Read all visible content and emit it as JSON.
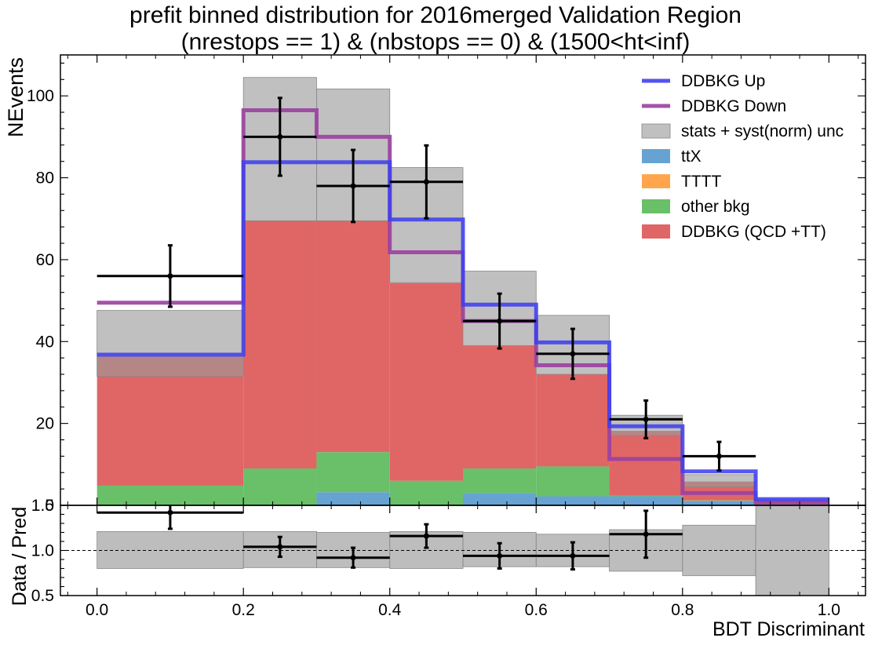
{
  "chart_data": {
    "type": "histogram",
    "title_line1": "prefit binned distribution for 2016merged Validation Region",
    "title_line2": "(nrestops == 1) & (nbstops == 0) & (1500<ht<inf)",
    "xlabel": "BDT Discriminant",
    "ylabel_main": "NEvents",
    "ylabel_ratio": "Data / Pred",
    "xlim": [
      -0.05,
      1.05
    ],
    "ylim_main": [
      0,
      110
    ],
    "ylim_ratio": [
      0.5,
      1.5
    ],
    "xticks": [
      "0.0",
      "0.2",
      "0.4",
      "0.6",
      "0.8",
      "1.0"
    ],
    "yticks_main": [
      "20",
      "40",
      "60",
      "80",
      "100"
    ],
    "yticks_ratio": [
      "0.5",
      "1.0",
      "1.5"
    ],
    "bins": [
      0.0,
      0.2,
      0.3,
      0.4,
      0.5,
      0.6,
      0.7,
      0.8,
      0.9,
      1.0
    ],
    "colors": {
      "ddbkg": "#e06666",
      "other_bkg": "#6abf69",
      "tttt": "#ffa64d",
      "ttx": "#66a3d2",
      "unc": "#999999",
      "up": "#4040ee",
      "down": "#9a40a0",
      "data": "#000000"
    },
    "stack": [
      {
        "name": "ttX",
        "key": "ttx",
        "values": [
          0.0,
          0.0,
          3.2,
          0.0,
          3.0,
          2.2,
          2.2,
          1.0,
          0.2
        ]
      },
      {
        "name": "TTTT",
        "key": "tttt",
        "values": [
          0.0,
          0.0,
          0.0,
          0.0,
          0.0,
          0.0,
          0.0,
          0.0,
          0.0
        ]
      },
      {
        "name": "other bkg",
        "key": "other_bkg",
        "values": [
          4.8,
          9.0,
          9.8,
          6.0,
          6.0,
          7.3,
          0.2,
          0.2,
          0.1
        ]
      },
      {
        "name": "DDBKG (QCD +TT)",
        "key": "ddbkg",
        "values": [
          31.6,
          60.5,
          56.5,
          48.3,
          30.0,
          22.5,
          15.8,
          4.6,
          0.9
        ]
      }
    ],
    "unc_band": {
      "name": "stats + syst(norm) unc",
      "lo": [
        31.5,
        69.5,
        69.5,
        54.4,
        39.0,
        32.0,
        17.0,
        4.5,
        0.0
      ],
      "hi": [
        47.6,
        104.5,
        101.7,
        82.5,
        57.2,
        46.4,
        22.0,
        7.5,
        1.5
      ]
    },
    "ddbkg_up": {
      "name": "DDBKG Up",
      "values": [
        36.8,
        83.8,
        83.8,
        69.8,
        49.0,
        39.8,
        19.3,
        8.3,
        1.5
      ]
    },
    "ddbkg_down": {
      "name": "DDBKG Down",
      "values": [
        49.5,
        96.5,
        90.0,
        61.8,
        45.0,
        34.2,
        11.3,
        3.0,
        0.7
      ]
    },
    "data_points": {
      "x": [
        0.1,
        0.25,
        0.35,
        0.45,
        0.55,
        0.65,
        0.75,
        0.85
      ],
      "xerr": [
        0.1,
        0.05,
        0.05,
        0.05,
        0.05,
        0.05,
        0.05,
        0.05
      ],
      "y": [
        56,
        90,
        78,
        79,
        45,
        37,
        21,
        12
      ],
      "yerr": [
        7.5,
        9.5,
        8.8,
        8.9,
        6.7,
        6.1,
        4.6,
        3.5
      ]
    },
    "ratio": {
      "x": [
        0.1,
        0.25,
        0.35,
        0.45,
        0.55,
        0.65,
        0.75
      ],
      "xerr": [
        0.1,
        0.05,
        0.05,
        0.05,
        0.05,
        0.05,
        0.05
      ],
      "y": [
        1.42,
        1.04,
        0.92,
        1.16,
        0.94,
        0.94,
        1.18
      ],
      "yerr": [
        0.18,
        0.11,
        0.11,
        0.13,
        0.14,
        0.15,
        0.26
      ],
      "band_lo": [
        0.8,
        0.81,
        0.81,
        0.8,
        0.82,
        0.82,
        0.77,
        0.72,
        0.5
      ],
      "band_hi": [
        1.21,
        1.21,
        1.2,
        1.21,
        1.2,
        1.18,
        1.23,
        1.28,
        1.5
      ]
    },
    "legend": [
      {
        "label": "DDBKG Up",
        "kind": "line",
        "color_key": "up"
      },
      {
        "label": "DDBKG Down",
        "kind": "line",
        "color_key": "down"
      },
      {
        "label": "stats + syst(norm) unc",
        "kind": "patch",
        "color_key": "unc"
      },
      {
        "label": "ttX",
        "kind": "patch",
        "color_key": "ttx"
      },
      {
        "label": "TTTT",
        "kind": "patch",
        "color_key": "tttt"
      },
      {
        "label": "other bkg",
        "kind": "patch",
        "color_key": "other_bkg"
      },
      {
        "label": "DDBKG (QCD +TT)",
        "kind": "patch",
        "color_key": "ddbkg"
      }
    ],
    "legend_position": "top-right",
    "grid": false
  }
}
